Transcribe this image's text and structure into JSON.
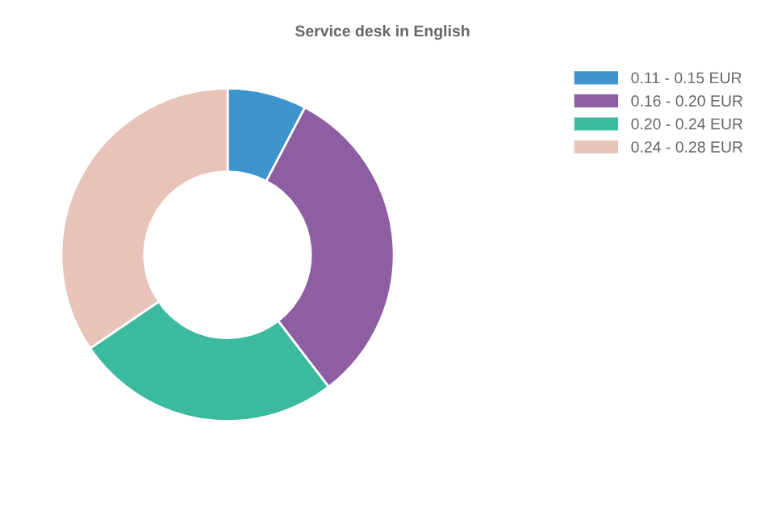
{
  "chart_data": {
    "type": "donut",
    "title": "Service desk in English",
    "categories": [
      "0.11 - 0.15 EUR",
      "0.16 - 0.20 EUR",
      "0.20 - 0.24 EUR",
      "0.24 - 0.28 EUR"
    ],
    "values": [
      7.7,
      31.9,
      25.9,
      34.5
    ],
    "colors": [
      "#3e95cd",
      "#8e5ea2",
      "#3cba9f",
      "#e8c3b9"
    ],
    "legend": "top right"
  }
}
